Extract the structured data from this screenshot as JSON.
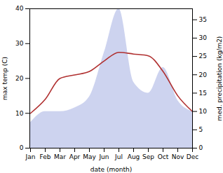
{
  "chart_data": {
    "type": "line",
    "xlabel": "date (month)",
    "ylabel": "max temp (C)",
    "y2label": "med. precipitation (kg/m2)",
    "categories": [
      "Jan",
      "Feb",
      "Mar",
      "Apr",
      "May",
      "Jun",
      "Jul",
      "Aug",
      "Sep",
      "Oct",
      "Nov",
      "Dec"
    ],
    "series": [
      {
        "type": "area",
        "axis": "y2",
        "color": "#b8c0e8",
        "values": [
          7.0,
          10.0,
          10.0,
          11.0,
          14.0,
          26.0,
          38.0,
          18.0,
          15.0,
          22.0,
          13.0,
          10.0
        ]
      },
      {
        "type": "line",
        "color": "#b03030",
        "values": [
          10.0,
          14.0,
          20.0,
          21.0,
          22.0,
          25.0,
          27.5,
          27.0,
          26.5,
          22.0,
          15.0,
          10.5
        ]
      }
    ],
    "ylim": [
      0,
      40
    ],
    "yticks": [
      0,
      10,
      20,
      30,
      40
    ],
    "y2lim": [
      0,
      38
    ],
    "y2ticks": [
      0,
      5,
      10,
      15,
      20,
      25,
      30,
      35
    ],
    "grid": false
  }
}
